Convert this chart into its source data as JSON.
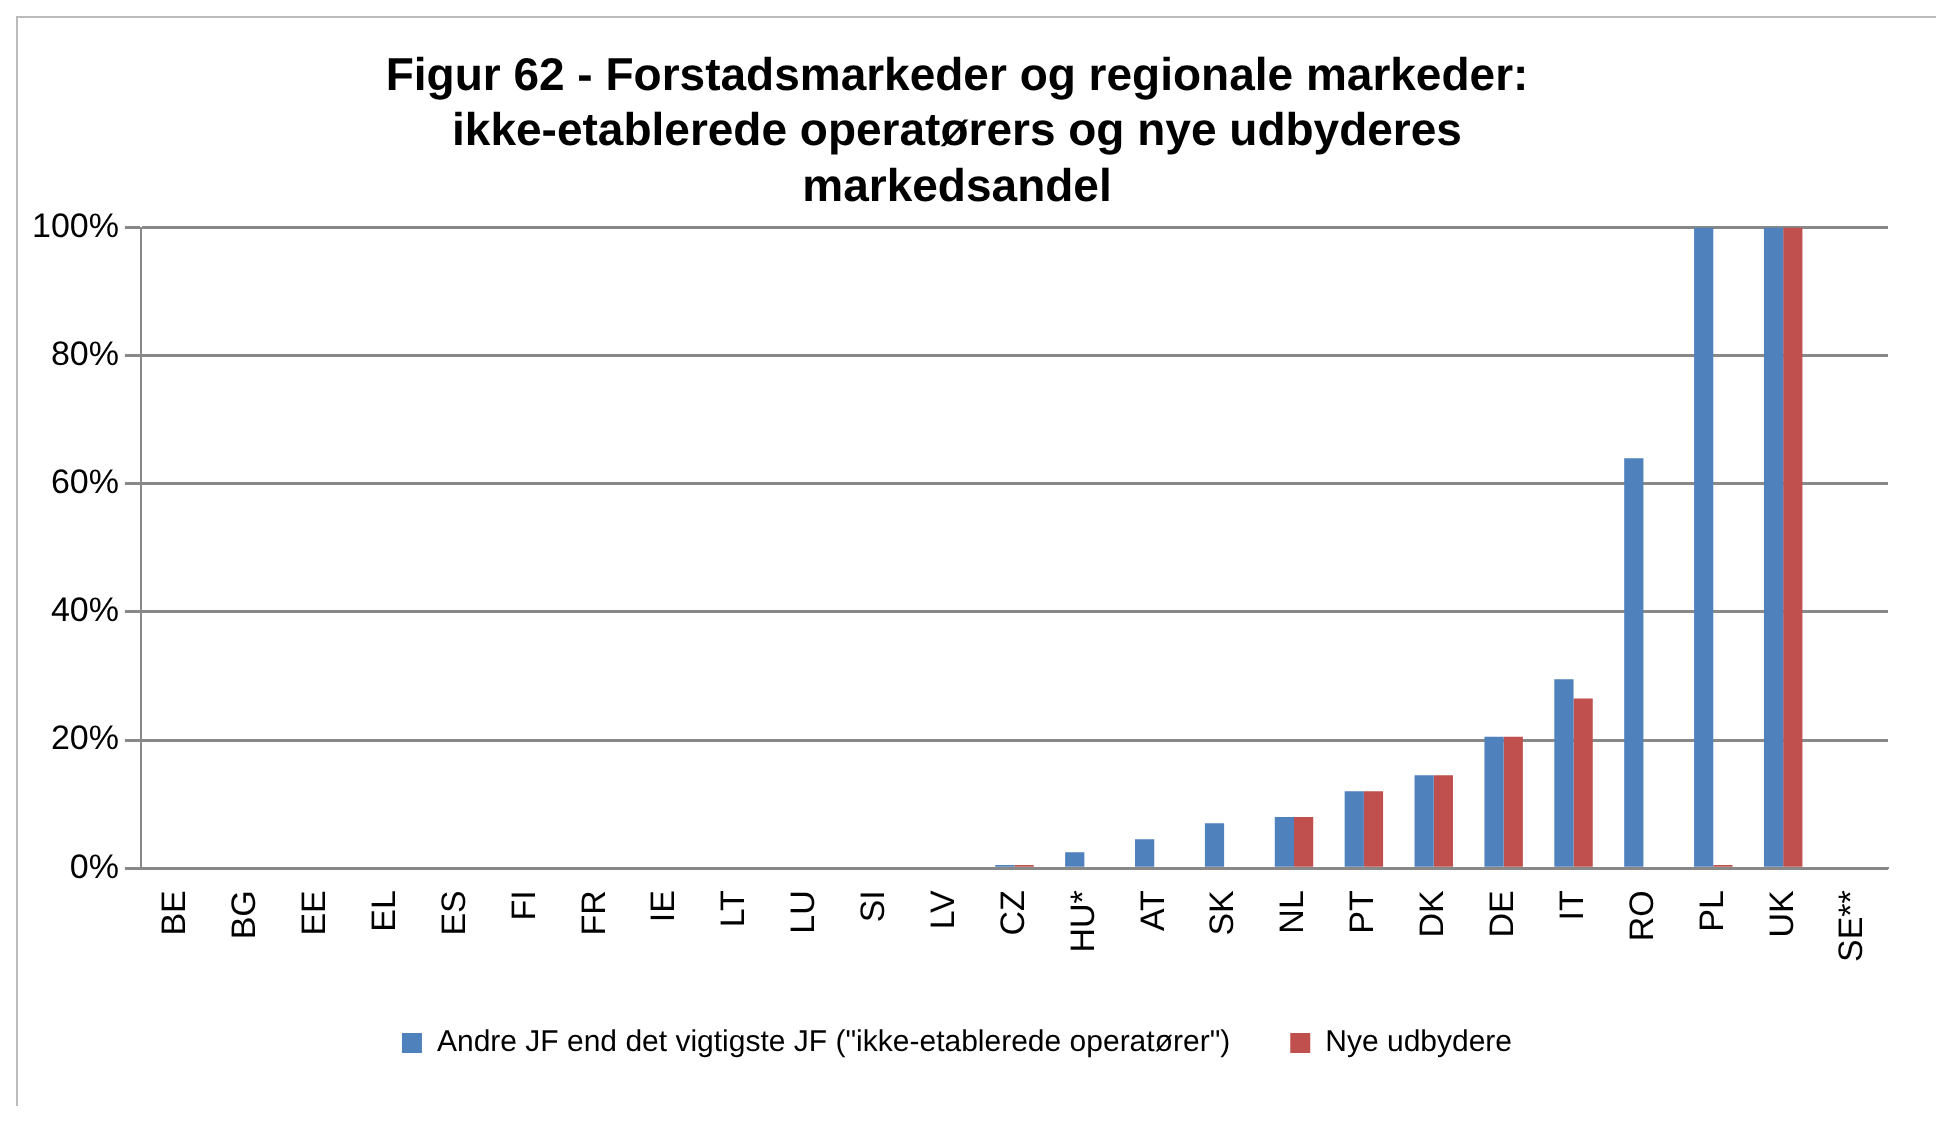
{
  "chart_data": {
    "type": "bar",
    "title": "Figur 62 - Forstadsmarkeder og regionale markeder: ikke-etablerede operatørers og nye udbyderes markedsandel",
    "categories": [
      "BE",
      "BG",
      "EE",
      "EL",
      "ES",
      "FI",
      "FR",
      "IE",
      "LT",
      "LU",
      "SI",
      "LV",
      "CZ",
      "HU*",
      "AT",
      "SK",
      "NL",
      "PT",
      "DK",
      "DE",
      "IT",
      "RO",
      "PL",
      "UK",
      "SE**"
    ],
    "series": [
      {
        "name": "Andre JF end det vigtigste JF (\"ikke-etablerede operatører\")",
        "color": "#4f81bd",
        "values": [
          0,
          0,
          0,
          0,
          0,
          0,
          0,
          0,
          0,
          0,
          0,
          0,
          0.5,
          2.5,
          4.5,
          7,
          8,
          12,
          14.5,
          20.5,
          29.5,
          64,
          100,
          100,
          0
        ]
      },
      {
        "name": "Nye udbydere",
        "color": "#c0504d",
        "values": [
          0,
          0,
          0,
          0,
          0,
          0,
          0,
          0,
          0,
          0,
          0,
          0,
          0.5,
          0,
          0,
          0,
          8,
          12,
          14.5,
          20.5,
          26.5,
          0,
          0.5,
          100,
          0
        ]
      }
    ],
    "ylim": [
      0,
      100
    ],
    "yticks": [
      {
        "value": 0,
        "label": "0%"
      },
      {
        "value": 20,
        "label": "20%"
      },
      {
        "value": 40,
        "label": "40%"
      },
      {
        "value": 60,
        "label": "60%"
      },
      {
        "value": 80,
        "label": "80%"
      },
      {
        "value": 100,
        "label": "100%"
      }
    ],
    "grid": "y",
    "legend": "bottom"
  }
}
